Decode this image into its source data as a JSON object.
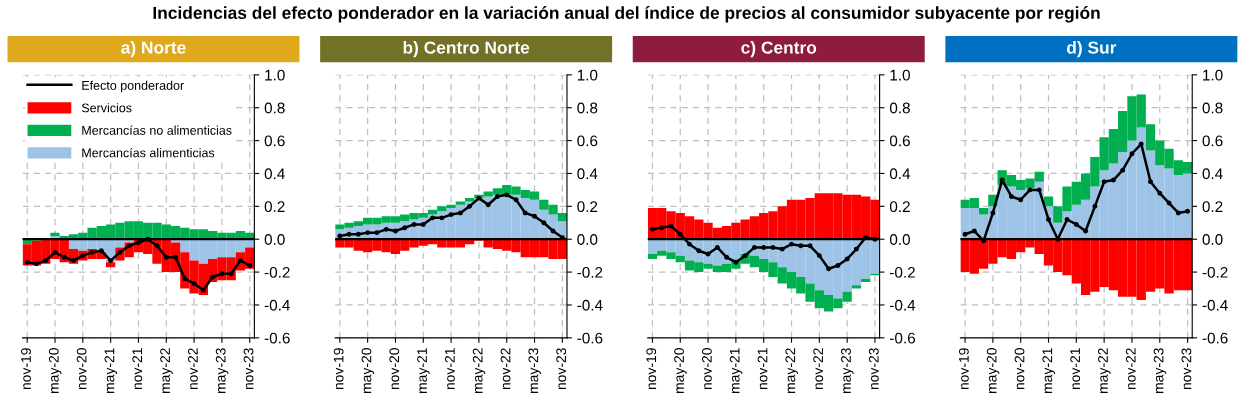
{
  "chart_data": [
    {
      "type": "bar",
      "title": "a) Norte",
      "annotations": [
        "Incidencias del efecto ponderador en la variación anual del índice de precios al consumidor subyacente por región"
      ],
      "stacked": true,
      "legend": "top left",
      "grid": true,
      "marker": "circle",
      "line_style": "solid",
      "categories": [
        "nov-19",
        null,
        null,
        "may-20",
        null,
        null,
        "nov-20",
        null,
        null,
        "may-21",
        null,
        null,
        "nov-21",
        null,
        null,
        "may-22",
        null,
        null,
        "nov-22",
        null,
        null,
        "may-23",
        null,
        null,
        "nov-23"
      ],
      "ylim": [
        -0.6,
        1.0
      ],
      "yticks": [
        {
          "value": -0.6,
          "label": "-0.6"
        },
        {
          "value": -0.4,
          "label": "-0.4"
        },
        {
          "value": -0.2,
          "label": "-0.2"
        },
        {
          "value": 0,
          "label": "0.0"
        },
        {
          "value": 0.2,
          "label": "0.2"
        },
        {
          "value": 0.4,
          "label": "0.4"
        },
        {
          "value": 0.6,
          "label": "0.6"
        },
        {
          "value": 0.8,
          "label": "0.8"
        },
        {
          "value": 1.0,
          "label": "1.0"
        }
      ],
      "ref_lines": [
        {
          "axis": "y",
          "value": 0,
          "color": "#000000"
        }
      ],
      "series": [
        {
          "name": "Mercancías alimenticias",
          "color": "#9dc3e6",
          "values": [
            0.0,
            0.0,
            0.0,
            0.02,
            null,
            -0.06,
            -0.07,
            -0.06,
            -0.08,
            -0.14,
            -0.05,
            -0.02,
            null,
            0.0,
            null,
            0.0,
            -0.02,
            -0.08,
            -0.13,
            -0.15,
            -0.12,
            -0.11,
            -0.11,
            -0.08,
            -0.05
          ]
        },
        {
          "name": "Mercancías no alimenticias",
          "color": "#00b050",
          "values": [
            -0.03,
            -0.01,
            null,
            0.02,
            0.02,
            0.03,
            0.04,
            0.07,
            0.08,
            0.09,
            0.1,
            0.11,
            0.11,
            0.1,
            0.1,
            0.09,
            0.08,
            0.07,
            0.06,
            0.06,
            0.05,
            0.04,
            0.04,
            0.05,
            0.04
          ]
        },
        {
          "name": "Servicios",
          "color": "#ff0000",
          "values": [
            -0.13,
            -0.15,
            -0.15,
            -0.12,
            -0.14,
            -0.09,
            -0.06,
            -0.06,
            -0.04,
            -0.03,
            -0.08,
            -0.09,
            -0.08,
            -0.09,
            -0.15,
            -0.2,
            -0.18,
            -0.22,
            -0.2,
            -0.19,
            -0.14,
            -0.14,
            -0.14,
            -0.11,
            -0.13
          ]
        },
        {
          "name": "Efecto ponderador",
          "type": "line",
          "color": "#000000",
          "values": [
            -0.14,
            -0.15,
            -0.13,
            -0.08,
            -0.11,
            -0.13,
            -0.1,
            -0.08,
            -0.07,
            -0.13,
            -0.08,
            -0.04,
            -0.02,
            0.0,
            -0.04,
            -0.11,
            -0.11,
            -0.24,
            -0.27,
            -0.31,
            -0.23,
            -0.21,
            -0.21,
            -0.13,
            -0.16
          ]
        }
      ]
    },
    {
      "type": "bar",
      "title": "b) Centro Norte",
      "stacked": true,
      "grid": true,
      "marker": "circle",
      "line_style": "solid",
      "categories": [
        "nov-19",
        null,
        null,
        "may-20",
        null,
        null,
        "nov-20",
        null,
        null,
        "may-21",
        null,
        null,
        "nov-21",
        null,
        null,
        "may-22",
        null,
        null,
        "nov-22",
        null,
        null,
        "may-23",
        null,
        null,
        "nov-23"
      ],
      "ylim": [
        -0.6,
        1.0
      ],
      "yticks": [
        {
          "value": -0.6,
          "label": "-0.6"
        },
        {
          "value": -0.4,
          "label": "-0.4"
        },
        {
          "value": -0.2,
          "label": "-0.2"
        },
        {
          "value": 0,
          "label": "0.0"
        },
        {
          "value": 0.2,
          "label": "0.2"
        },
        {
          "value": 0.4,
          "label": "0.4"
        },
        {
          "value": 0.6,
          "label": "0.6"
        },
        {
          "value": 0.8,
          "label": "0.8"
        },
        {
          "value": 1.0,
          "label": "1.0"
        }
      ],
      "ref_lines": [
        {
          "axis": "y",
          "value": 0,
          "color": "#000000"
        }
      ],
      "series": [
        {
          "color": "#9dc3e6",
          "values": [
            0.06,
            0.07,
            0.08,
            0.09,
            0.09,
            0.1,
            0.1,
            0.11,
            0.12,
            0.13,
            0.15,
            0.17,
            0.19,
            0.21,
            0.23,
            0.25,
            0.26,
            0.27,
            0.27,
            0.27,
            0.25,
            0.24,
            0.18,
            0.15,
            0.11
          ]
        },
        {
          "color": "#00b050",
          "values": [
            0.03,
            0.03,
            0.03,
            0.04,
            0.04,
            0.04,
            0.04,
            0.04,
            0.04,
            0.03,
            0.03,
            0.03,
            0.02,
            0.02,
            0.02,
            0.02,
            0.03,
            0.04,
            0.06,
            0.05,
            0.05,
            0.05,
            0.06,
            0.06,
            0.05
          ]
        },
        {
          "color": "#ff0000",
          "values": [
            -0.05,
            -0.05,
            -0.07,
            -0.08,
            -0.07,
            -0.08,
            -0.09,
            -0.07,
            -0.05,
            -0.04,
            -0.03,
            -0.05,
            -0.05,
            -0.05,
            -0.03,
            -0.01,
            -0.05,
            -0.06,
            -0.07,
            -0.08,
            -0.11,
            -0.11,
            -0.11,
            -0.12,
            -0.12
          ]
        },
        {
          "type": "line",
          "color": "#000000",
          "values": [
            0.02,
            0.03,
            0.03,
            0.04,
            0.04,
            0.06,
            0.05,
            0.07,
            0.09,
            0.09,
            0.13,
            0.13,
            0.15,
            0.16,
            0.2,
            0.25,
            0.21,
            0.26,
            0.27,
            0.24,
            0.16,
            0.14,
            0.1,
            0.05,
            0.01
          ]
        }
      ]
    },
    {
      "type": "bar",
      "title": "c) Centro",
      "stacked": true,
      "grid": true,
      "marker": "circle",
      "line_style": "solid",
      "categories": [
        "nov-19",
        null,
        null,
        "may-20",
        null,
        null,
        "nov-20",
        null,
        null,
        "may-21",
        null,
        null,
        "nov-21",
        null,
        null,
        "may-22",
        null,
        null,
        "nov-22",
        null,
        null,
        "may-23",
        null,
        null,
        "nov-23"
      ],
      "ylim": [
        -0.6,
        1.0
      ],
      "yticks": [
        {
          "value": -0.6,
          "label": "-0.6"
        },
        {
          "value": -0.4,
          "label": "-0.4"
        },
        {
          "value": -0.2,
          "label": "-0.2"
        },
        {
          "value": 0,
          "label": "0.0"
        },
        {
          "value": 0.2,
          "label": "0.2"
        },
        {
          "value": 0.4,
          "label": "0.4"
        },
        {
          "value": 0.6,
          "label": "0.6"
        },
        {
          "value": 0.8,
          "label": "0.8"
        },
        {
          "value": 1.0,
          "label": "1.0"
        }
      ],
      "ref_lines": [
        {
          "axis": "y",
          "value": 0,
          "color": "#000000"
        }
      ],
      "series": [
        {
          "color": "#9dc3e6",
          "values": [
            -0.09,
            -0.07,
            -0.08,
            -0.1,
            -0.13,
            -0.14,
            -0.15,
            -0.16,
            -0.15,
            -0.13,
            -0.09,
            -0.1,
            -0.12,
            -0.14,
            -0.17,
            -0.2,
            -0.23,
            -0.27,
            -0.31,
            -0.34,
            -0.36,
            -0.32,
            -0.28,
            -0.24,
            -0.21
          ]
        },
        {
          "color": "#00b050",
          "values": [
            -0.03,
            -0.03,
            -0.04,
            -0.04,
            -0.06,
            -0.06,
            -0.03,
            -0.04,
            -0.05,
            -0.05,
            -0.06,
            -0.07,
            -0.08,
            -0.09,
            -0.1,
            -0.1,
            -0.1,
            -0.11,
            -0.11,
            -0.1,
            -0.06,
            -0.06,
            -0.02,
            -0.02,
            -0.01
          ]
        },
        {
          "color": "#ff0000",
          "values": [
            0.19,
            0.19,
            0.17,
            0.16,
            0.14,
            0.12,
            0.1,
            0.07,
            0.08,
            0.1,
            0.12,
            0.14,
            0.16,
            0.17,
            0.2,
            0.24,
            0.24,
            0.25,
            0.28,
            0.28,
            0.28,
            0.27,
            0.27,
            0.26,
            0.24
          ]
        },
        {
          "type": "line",
          "color": "#000000",
          "values": [
            0.06,
            0.07,
            0.08,
            0.03,
            -0.03,
            -0.07,
            -0.09,
            -0.05,
            -0.11,
            -0.14,
            -0.1,
            -0.05,
            -0.05,
            -0.05,
            -0.06,
            -0.03,
            -0.04,
            -0.04,
            -0.1,
            -0.18,
            -0.16,
            -0.12,
            -0.06,
            0.01,
            0.0
          ]
        }
      ]
    },
    {
      "type": "bar",
      "title": "d) Sur",
      "stacked": true,
      "grid": true,
      "marker": "circle",
      "line_style": "solid",
      "categories": [
        "nov-19",
        null,
        null,
        "may-20",
        null,
        null,
        "nov-20",
        null,
        null,
        "may-21",
        null,
        null,
        "nov-21",
        null,
        null,
        "may-22",
        null,
        null,
        "nov-22",
        null,
        null,
        "may-23",
        null,
        null,
        "nov-23"
      ],
      "ylim": [
        -0.6,
        1.0
      ],
      "yticks": [
        {
          "value": -0.6,
          "label": "-0.6"
        },
        {
          "value": -0.4,
          "label": "-0.4"
        },
        {
          "value": -0.2,
          "label": "-0.2"
        },
        {
          "value": 0,
          "label": "0.0"
        },
        {
          "value": 0.2,
          "label": "0.2"
        },
        {
          "value": 0.4,
          "label": "0.4"
        },
        {
          "value": 0.6,
          "label": "0.6"
        },
        {
          "value": 0.8,
          "label": "0.8"
        },
        {
          "value": 1.0,
          "label": "1.0"
        }
      ],
      "ref_lines": [
        {
          "axis": "y",
          "value": 0,
          "color": "#000000"
        }
      ],
      "series": [
        {
          "color": "#9dc3e6",
          "values": [
            0.19,
            0.19,
            0.15,
            0.2,
            0.33,
            0.32,
            0.3,
            0.31,
            0.35,
            0.2,
            0.1,
            0.17,
            0.21,
            0.24,
            0.32,
            0.42,
            0.46,
            0.53,
            0.6,
            0.68,
            0.54,
            0.45,
            0.43,
            0.39,
            0.4
          ]
        },
        {
          "color": "#00b050",
          "values": [
            0.05,
            0.06,
            0.04,
            0.07,
            0.09,
            0.07,
            0.06,
            0.06,
            0.06,
            0.06,
            0.1,
            0.15,
            0.14,
            0.16,
            0.18,
            0.2,
            0.21,
            0.25,
            0.27,
            0.2,
            0.16,
            0.15,
            0.12,
            0.09,
            0.07
          ]
        },
        {
          "color": "#ff0000",
          "values": [
            -0.2,
            -0.21,
            -0.18,
            -0.15,
            -0.11,
            -0.12,
            -0.08,
            -0.05,
            -0.09,
            -0.16,
            -0.2,
            -0.22,
            -0.27,
            -0.34,
            -0.32,
            -0.29,
            -0.31,
            -0.35,
            -0.35,
            -0.37,
            -0.32,
            -0.3,
            -0.33,
            -0.31,
            -0.31
          ]
        },
        {
          "type": "line",
          "color": "#000000",
          "values": [
            0.03,
            0.05,
            -0.01,
            0.16,
            0.36,
            0.26,
            0.24,
            0.3,
            0.3,
            0.12,
            0.0,
            0.12,
            0.09,
            0.05,
            0.2,
            0.35,
            0.36,
            0.42,
            0.52,
            0.58,
            0.35,
            0.28,
            0.22,
            0.16,
            0.17
          ]
        }
      ]
    }
  ]
}
